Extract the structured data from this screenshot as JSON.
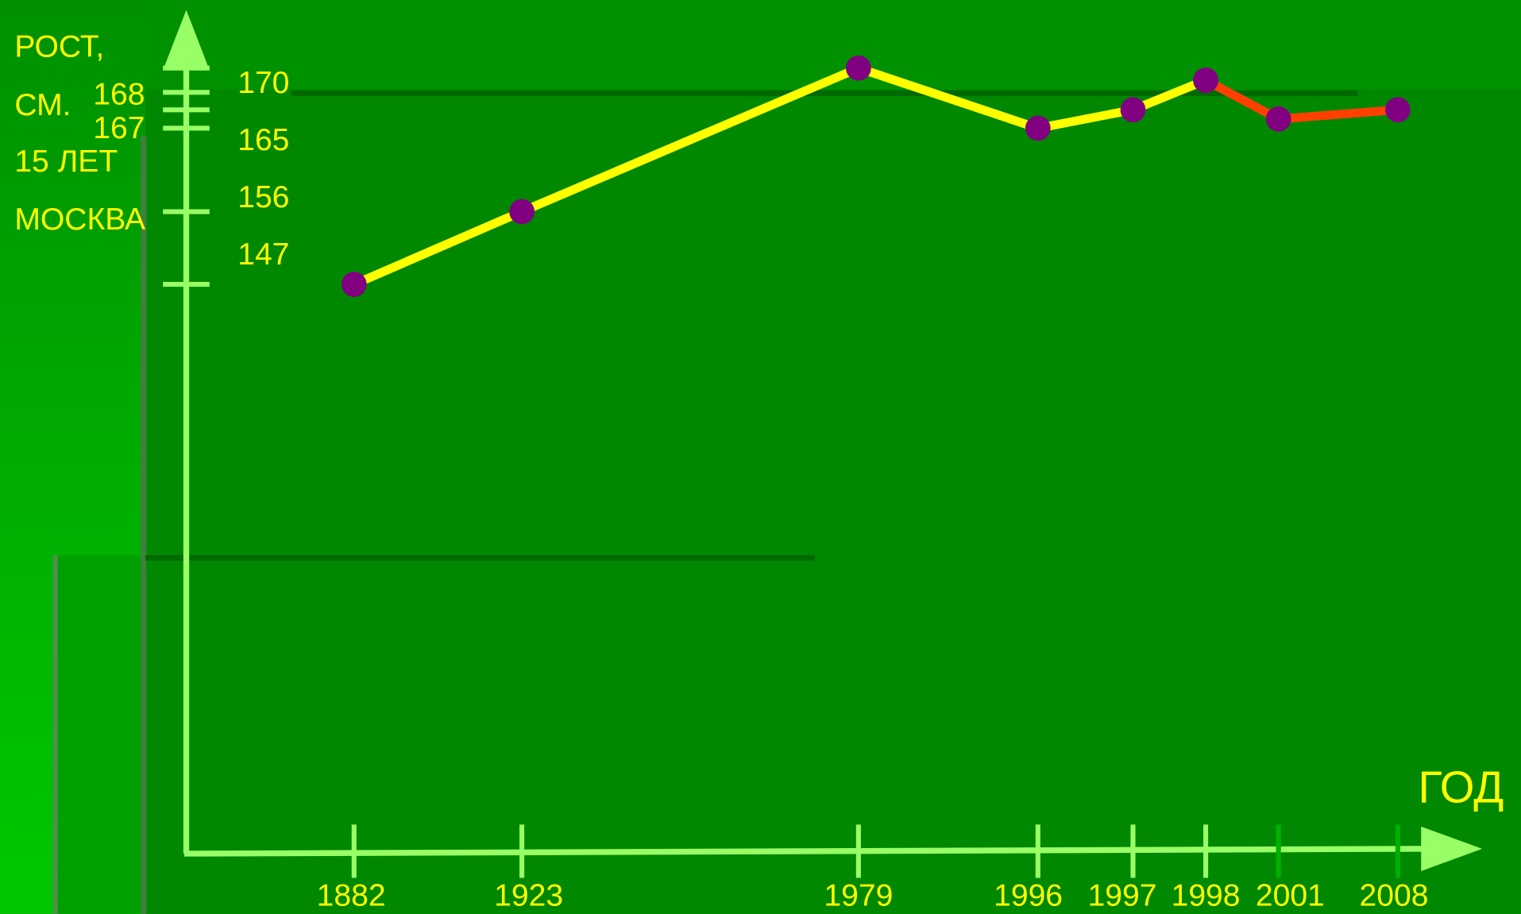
{
  "chart_data": {
    "type": "line",
    "y_label": [
      "РОСТ,",
      "СМ.",
      "15 ЛЕТ",
      "МОСКВА"
    ],
    "x_label": "ГОД",
    "categories": [
      "1882",
      "1923",
      "1979",
      "1996",
      "1997",
      "1998",
      "2001",
      "2008"
    ],
    "series": [
      {
        "color": "#ffff00",
        "values": [
          147,
          156,
          170,
          165,
          167,
          169,
          null,
          null
        ]
      },
      {
        "color": "#ff4000",
        "values": [
          null,
          null,
          null,
          null,
          null,
          169,
          166,
          167
        ]
      }
    ],
    "marker_color": "#800080",
    "yticks": [
      147,
      156,
      165,
      167,
      168,
      170
    ]
  }
}
